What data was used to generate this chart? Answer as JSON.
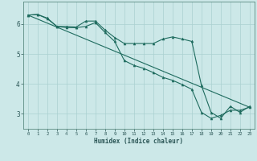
{
  "xlabel": "Humidex (Indice chaleur)",
  "background_color": "#cce8e8",
  "grid_color": "#aad0d0",
  "line_color": "#1e6b5e",
  "spine_color": "#5a8a80",
  "tick_color": "#2a5555",
  "x_range": [
    -0.5,
    23.5
  ],
  "y_range": [
    2.5,
    6.75
  ],
  "y_ticks": [
    3,
    4,
    5,
    6
  ],
  "line1_x": [
    0,
    1,
    2,
    3,
    4,
    5,
    6,
    7,
    8,
    9,
    10,
    11,
    12,
    13,
    14,
    15,
    16,
    17,
    18,
    19,
    20,
    21,
    22,
    23
  ],
  "line1_y": [
    6.3,
    6.32,
    6.2,
    5.92,
    5.92,
    5.9,
    6.1,
    6.1,
    5.8,
    5.55,
    5.35,
    5.35,
    5.35,
    5.35,
    5.5,
    5.57,
    5.5,
    5.42,
    3.95,
    3.05,
    2.85,
    3.25,
    3.05,
    3.25
  ],
  "line2_x": [
    0,
    1,
    2,
    3,
    4,
    5,
    6,
    7,
    8,
    9,
    10,
    11,
    12,
    13,
    14,
    15,
    16,
    17,
    18,
    19,
    20,
    21,
    22,
    23
  ],
  "line2_y": [
    6.3,
    6.32,
    6.18,
    5.92,
    5.88,
    5.88,
    5.92,
    6.05,
    5.72,
    5.42,
    4.78,
    4.62,
    4.52,
    4.38,
    4.22,
    4.12,
    3.98,
    3.82,
    3.05,
    2.85,
    2.95,
    3.12,
    3.12,
    3.22
  ],
  "line3_x": [
    0,
    23
  ],
  "line3_y": [
    6.3,
    3.22
  ]
}
